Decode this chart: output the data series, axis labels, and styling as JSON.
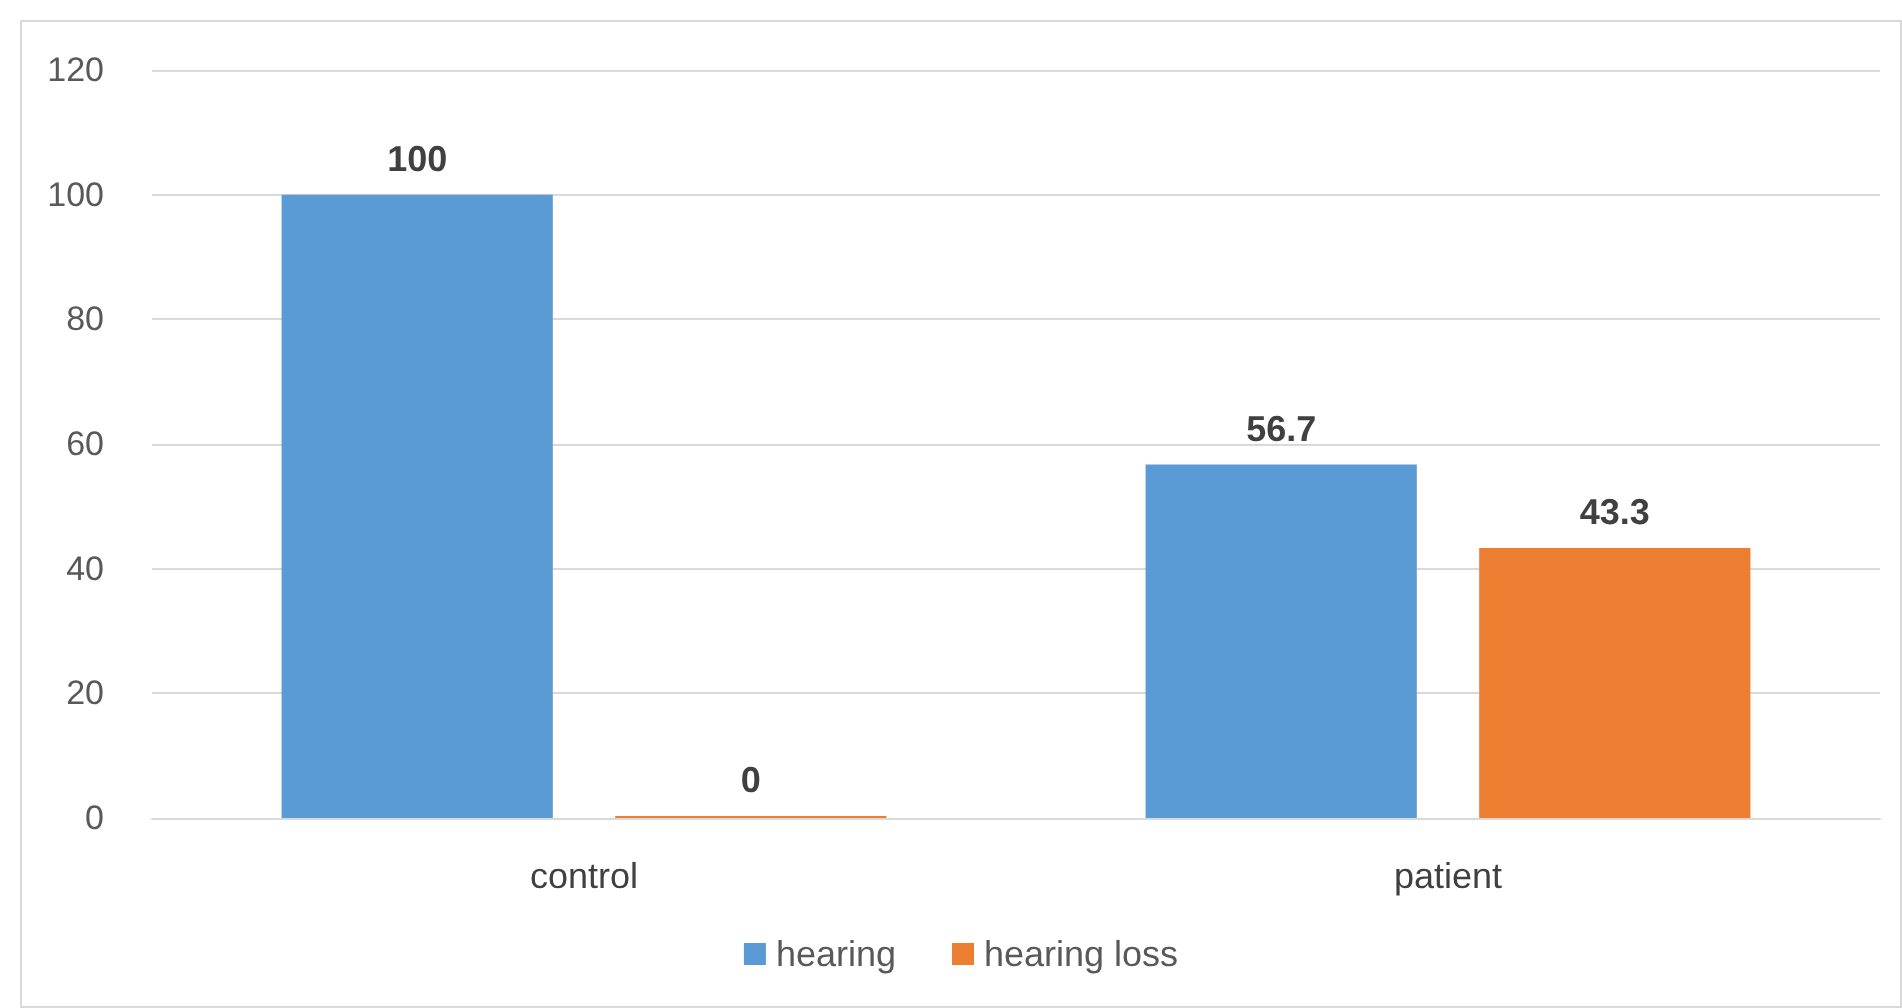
{
  "chart_data": {
    "type": "bar",
    "categories": [
      "control",
      "patient"
    ],
    "series": [
      {
        "name": "hearing",
        "color": "#5b9bd5",
        "values": [
          100,
          56.7
        ]
      },
      {
        "name": "hearing loss",
        "color": "#ed7d31",
        "values": [
          0,
          43.3
        ]
      }
    ],
    "ylim": [
      0,
      120
    ],
    "yticks": [
      0,
      20,
      40,
      60,
      80,
      100,
      120
    ],
    "grid": "y",
    "legend": "bottom",
    "data_labels": true
  }
}
